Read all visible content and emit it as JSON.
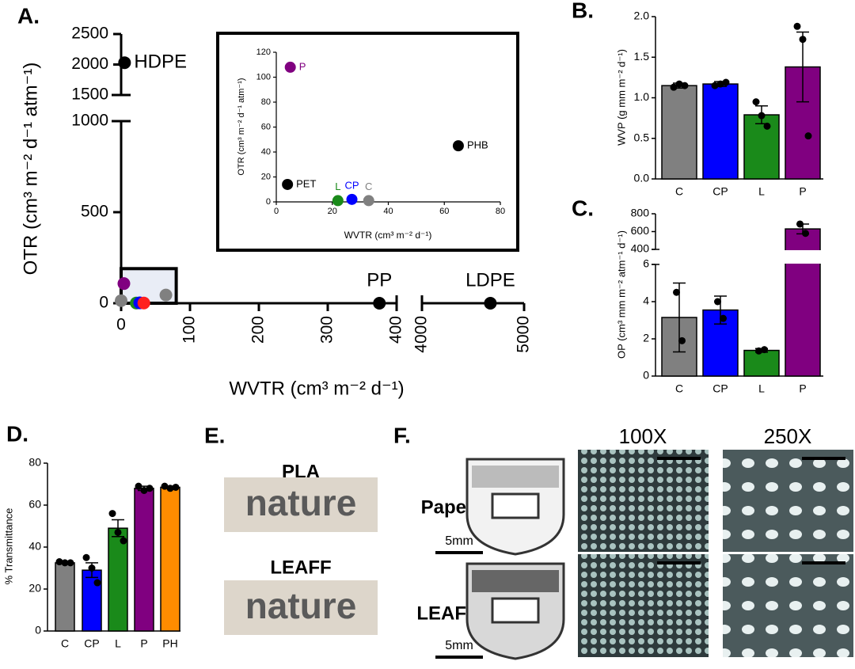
{
  "chart_data": [
    {
      "type": "scatter",
      "label": "A.",
      "xlabel": "WVTR (cm³ m⁻² d⁻¹)",
      "ylabel": "OTR (cm³ m⁻² d⁻¹ atm⁻¹)",
      "xlim_segments": [
        [
          0,
          400
        ],
        [
          4000,
          5000
        ]
      ],
      "ylim_segments": [
        [
          0,
          1000
        ],
        [
          1500,
          2500
        ]
      ],
      "xticks": [
        0,
        100,
        200,
        300,
        400,
        4000,
        5000
      ],
      "yticks": [
        0,
        500,
        1000,
        1500,
        2000,
        2500
      ],
      "highlight": {
        "x": [
          0,
          80
        ],
        "y": [
          0,
          190
        ]
      },
      "points": [
        {
          "x": 5,
          "y": 2030,
          "color": "#000000",
          "label": "HDPE"
        },
        {
          "x": 375,
          "y": 0,
          "color": "#000000",
          "label": "PP"
        },
        {
          "x": 4670,
          "y": 0,
          "color": "#000000",
          "label": "LDPE"
        },
        {
          "x": 4,
          "y": 108,
          "color": "#800080"
        },
        {
          "x": 65,
          "y": 45,
          "color": "#808080"
        },
        {
          "x": 0,
          "y": 14,
          "color": "#808080"
        },
        {
          "x": 22,
          "y": 1,
          "color": "#1a8a1a"
        },
        {
          "x": 27,
          "y": 2,
          "color": "#0000ff"
        },
        {
          "x": 33,
          "y": 1,
          "color": "#ff2020"
        }
      ]
    },
    {
      "type": "scatter",
      "inset": true,
      "xlabel": "WVTR (cm³ m⁻² d⁻¹)",
      "ylabel": "OTR (cm³ m⁻² d⁻¹ atm⁻¹)",
      "xlim_segments": [
        [
          0,
          80
        ]
      ],
      "ylim_segments": [
        [
          0,
          120
        ]
      ],
      "xticks": [
        0,
        20,
        40,
        60,
        80
      ],
      "yticks": [
        0,
        20,
        40,
        60,
        80,
        100,
        120
      ],
      "points": [
        {
          "x": 5,
          "y": 108,
          "color": "#800080",
          "label": "P"
        },
        {
          "x": 65,
          "y": 45,
          "color": "#000000",
          "label": "PHB"
        },
        {
          "x": 4,
          "y": 14,
          "color": "#000000",
          "label": "PET"
        },
        {
          "x": 22,
          "y": 1,
          "color": "#1a8a1a",
          "label": "L"
        },
        {
          "x": 27,
          "y": 2,
          "color": "#0000ff",
          "label": "CP"
        },
        {
          "x": 33,
          "y": 1,
          "color": "#808080",
          "label": "C"
        }
      ]
    },
    {
      "type": "bar",
      "label": "B.",
      "ylabel": "WVP (g mm m⁻² d⁻¹)",
      "categories": [
        "C",
        "CP",
        "L",
        "P"
      ],
      "values": [
        1.15,
        1.17,
        0.79,
        1.38
      ],
      "errors": [
        0.03,
        0.03,
        0.11,
        0.43
      ],
      "points": [
        [
          1.13,
          1.17,
          1.15
        ],
        [
          1.15,
          1.17,
          1.19
        ],
        [
          0.95,
          0.78,
          0.65
        ],
        [
          1.88,
          1.72,
          0.53
        ]
      ],
      "colors": [
        "#808080",
        "#0000ff",
        "#1a8a1a",
        "#800080"
      ],
      "ylim_segments": [
        [
          0,
          2
        ]
      ],
      "yticks": [
        {
          "value": 0,
          "label": "0.0"
        },
        0.5,
        {
          "value": 1,
          "label": "1.0"
        },
        1.5,
        {
          "value": 2,
          "label": "2.0"
        }
      ]
    },
    {
      "type": "bar",
      "label": "C.",
      "ylabel": "OP (cm³ mm m⁻² atm⁻¹ d⁻¹)",
      "categories": [
        "C",
        "CP",
        "L",
        "P"
      ],
      "values": [
        3.15,
        3.55,
        1.38,
        630
      ],
      "errors": [
        1.85,
        0.75,
        0.1,
        55
      ],
      "points": [
        [
          4.5,
          1.9
        ],
        [
          4.0,
          3.1
        ],
        [
          1.35,
          1.42
        ],
        [
          685,
          580
        ]
      ],
      "colors": [
        "#808080",
        "#0000ff",
        "#1a8a1a",
        "#800080"
      ],
      "ylim_segments": [
        [
          0,
          6
        ],
        [
          400,
          800
        ]
      ],
      "yticks": [
        0,
        2,
        4,
        6,
        400,
        600,
        800
      ]
    },
    {
      "type": "bar",
      "label": "D.",
      "ylabel": "% Transmittance",
      "categories": [
        "C",
        "CP",
        "L",
        "P",
        "PH"
      ],
      "values": [
        32.5,
        29,
        49,
        68,
        68.5
      ],
      "errors": [
        0.5,
        3.5,
        4,
        1,
        0.5
      ],
      "points": [
        [
          33,
          32.5,
          32.5
        ],
        [
          35,
          30,
          23
        ],
        [
          56,
          47,
          43
        ],
        [
          69,
          67,
          68
        ],
        [
          69,
          68,
          68.5
        ]
      ],
      "colors": [
        "#808080",
        "#0000ff",
        "#1a8a1a",
        "#800080",
        "#ff8c00"
      ],
      "ylim_segments": [
        [
          0,
          80
        ]
      ],
      "yticks": [
        0,
        20,
        40,
        60,
        80
      ]
    }
  ],
  "panel_e": {
    "label": "E.",
    "items": [
      {
        "title": "PLA",
        "text": "nature"
      },
      {
        "title": "LEAFF",
        "text": "nature"
      }
    ]
  },
  "panel_f": {
    "label": "F.",
    "columns": [
      "100X",
      "250X"
    ],
    "rows": [
      {
        "name": "Paper",
        "scale": "5mm"
      },
      {
        "name": "LEAFF",
        "scale": "5mm"
      }
    ]
  }
}
